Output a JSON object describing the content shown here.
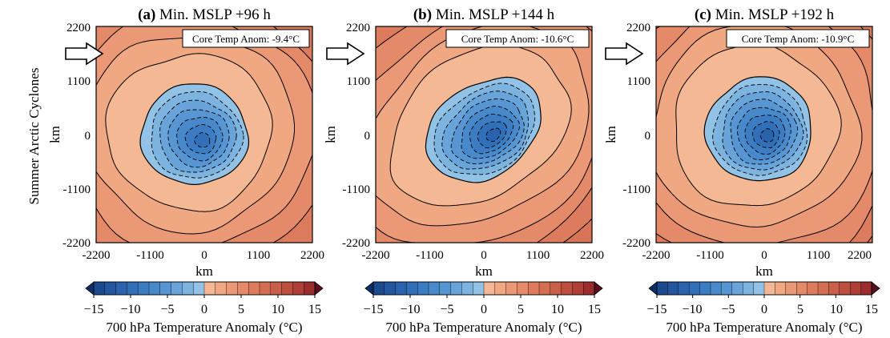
{
  "row_label": "Summer Arctic Cyclones",
  "chart_data": [
    {
      "type": "heatmap",
      "panel_letter": "(a)",
      "title": "Min. MSLP +96 h",
      "core_temp_label": "Core Temp Anom: -9.4°C",
      "core_temp_anom": -9.4,
      "xlabel": "km",
      "ylabel": "km",
      "xlim": [
        -2200,
        2200
      ],
      "ylim": [
        -2200,
        2200
      ],
      "x_ticks": [
        "-2200",
        "-1100",
        "0",
        "1100",
        "2200"
      ],
      "y_ticks": [
        "2200",
        "1100",
        "0",
        "-1100",
        "-2200"
      ],
      "field": {
        "center": [
          -200,
          0
        ],
        "radius_x": 1750,
        "radius_y": 1650,
        "rotation_deg": 0,
        "warm_gradient_to": "south-east"
      },
      "colorbar": {
        "label": "700 hPa Temperature Anomaly (°C)",
        "ticks": [
          "−15",
          "−10",
          "−5",
          "0",
          "5",
          "10",
          "15"
        ],
        "min": -15,
        "max": 15,
        "step": 1.5,
        "extend": "both"
      }
    },
    {
      "type": "heatmap",
      "panel_letter": "(b)",
      "title": "Min. MSLP +144 h",
      "core_temp_label": "Core Temp Anom: -10.6°C",
      "core_temp_anom": -10.6,
      "xlabel": "km",
      "ylabel": "km",
      "xlim": [
        -2200,
        2200
      ],
      "ylim": [
        -2200,
        2200
      ],
      "x_ticks": [
        "-2200",
        "-1100",
        "0",
        "1100",
        "2200"
      ],
      "y_ticks": [
        "2200",
        "1100",
        "0",
        "-1100",
        "-2200"
      ],
      "field": {
        "center": [
          0,
          100
        ],
        "radius_x": 2050,
        "radius_y": 1500,
        "rotation_deg": -35,
        "warm_gradient_to": "south-east"
      },
      "colorbar": {
        "label": "700 hPa Temperature Anomaly (°C)",
        "ticks": [
          "−15",
          "−10",
          "−5",
          "0",
          "5",
          "10",
          "15"
        ],
        "min": -15,
        "max": 15,
        "step": 1.5,
        "extend": "both"
      }
    },
    {
      "type": "heatmap",
      "panel_letter": "(c)",
      "title": "Min. MSLP +192 h",
      "core_temp_label": "Core Temp Anom: -10.9°C",
      "core_temp_anom": -10.9,
      "xlabel": "km",
      "ylabel": "km",
      "xlim": [
        -2200,
        2200
      ],
      "ylim": [
        -2200,
        2200
      ],
      "x_ticks": [
        "-2200",
        "-1100",
        "0",
        "1100",
        "2200"
      ],
      "y_ticks": [
        "2200",
        "1100",
        "0",
        "-1100",
        "-2200"
      ],
      "field": {
        "center": [
          -100,
          100
        ],
        "radius_x": 1750,
        "radius_y": 1700,
        "rotation_deg": -20,
        "warm_gradient_to": "south-east"
      },
      "colorbar": {
        "label": "700 hPa Temperature Anomaly (°C)",
        "ticks": [
          "−15",
          "−10",
          "−5",
          "0",
          "5",
          "10",
          "15"
        ],
        "min": -15,
        "max": 15,
        "step": 1.5,
        "extend": "both"
      }
    }
  ],
  "colors": {
    "cold_levels": [
      "#1c4a8e",
      "#23569f",
      "#2a62ad",
      "#326fb9",
      "#3b7cc2",
      "#4889cb",
      "#5796d2",
      "#68a4d9",
      "#7cb3df",
      "#92c2e5"
    ],
    "warm_levels": [
      "#f4b994",
      "#efa882",
      "#ea9875",
      "#e48a68",
      "#dd7c5d",
      "#d46e52",
      "#c95f48",
      "#bc4f3f",
      "#ae3f36",
      "#9b2d2c",
      "#85202a",
      "#6e1627"
    ],
    "frame": "#000000"
  }
}
